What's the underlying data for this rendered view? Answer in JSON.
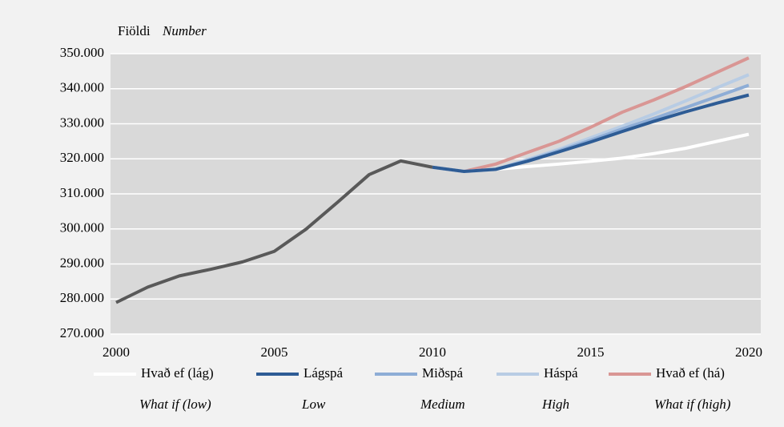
{
  "chart_data": {
    "type": "line",
    "y_label": "Fiöldi",
    "y_label_en": "Number",
    "x": [
      2000,
      2001,
      2002,
      2003,
      2004,
      2005,
      2006,
      2007,
      2008,
      2009,
      2010,
      2011,
      2012,
      2013,
      2014,
      2015,
      2016,
      2017,
      2018,
      2019,
      2020
    ],
    "xlim": [
      2000,
      2020
    ],
    "xticks": [
      2000,
      2005,
      2010,
      2015,
      2020
    ],
    "ylim": [
      270000,
      350000
    ],
    "yticks": [
      {
        "value": 270000,
        "label": "270.000"
      },
      {
        "value": 280000,
        "label": "280.000"
      },
      {
        "value": 290000,
        "label": "290.000"
      },
      {
        "value": 300000,
        "label": "300.000"
      },
      {
        "value": 310000,
        "label": "310.000"
      },
      {
        "value": 320000,
        "label": "320.000"
      },
      {
        "value": 330000,
        "label": "330.000"
      },
      {
        "value": 340000,
        "label": "340.000"
      },
      {
        "value": 350000,
        "label": "350.000"
      }
    ],
    "grid": true,
    "series": [
      {
        "name": "Hvað ef (lág)",
        "name_en": "What if (low)",
        "color": "#ffffff",
        "values": [
          null,
          null,
          null,
          null,
          null,
          null,
          null,
          null,
          null,
          null,
          317600,
          316400,
          317000,
          317800,
          318500,
          319300,
          320200,
          321500,
          323000,
          325000,
          327000
        ]
      },
      {
        "name": "Lágspá",
        "name_en": "Low",
        "color": "#2e5c95",
        "values": [
          null,
          null,
          null,
          null,
          null,
          null,
          null,
          null,
          null,
          null,
          317600,
          316400,
          317000,
          319300,
          322000,
          324800,
          327800,
          330700,
          333400,
          335900,
          338200
        ]
      },
      {
        "name": "Miðspá",
        "name_en": "Medium",
        "color": "#8eadd6",
        "values": [
          null,
          null,
          null,
          null,
          null,
          null,
          null,
          null,
          null,
          null,
          317600,
          316400,
          317000,
          319500,
          322300,
          325300,
          328500,
          331500,
          334600,
          337800,
          341000
        ]
      },
      {
        "name": "Háspá",
        "name_en": "High",
        "color": "#b8cce4",
        "values": [
          null,
          null,
          null,
          null,
          null,
          null,
          null,
          null,
          null,
          null,
          317600,
          316400,
          317000,
          319800,
          322700,
          326000,
          329300,
          332800,
          336500,
          340300,
          344000
        ]
      },
      {
        "name": "Hvað ef (há)",
        "name_en": "What if (high)",
        "color": "#d99694",
        "values": [
          null,
          null,
          null,
          null,
          null,
          null,
          null,
          null,
          null,
          null,
          317600,
          316400,
          318500,
          321800,
          325000,
          329000,
          333300,
          336800,
          340600,
          344700,
          348800
        ]
      },
      {
        "color": "#595959",
        "values": [
          279000,
          283400,
          286600,
          288500,
          290600,
          293600,
          299900,
          307600,
          315500,
          319400,
          317600,
          null,
          null,
          null,
          null,
          null,
          null,
          null,
          null,
          null,
          null
        ]
      }
    ]
  }
}
